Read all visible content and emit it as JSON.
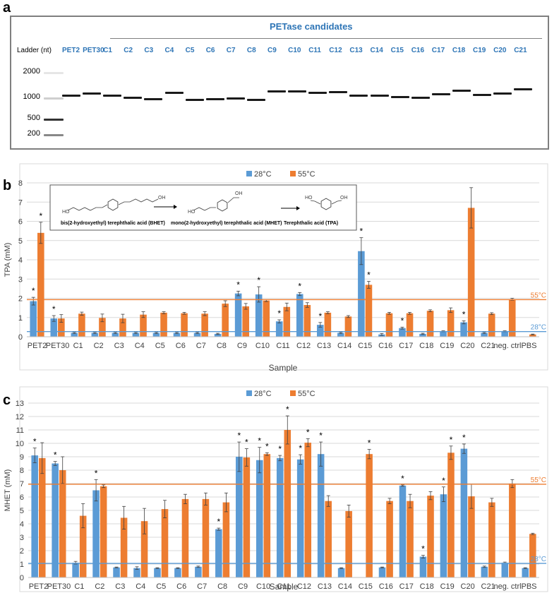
{
  "panel_a": {
    "letter": "a",
    "header": "PETase candidates",
    "ladder_title": "Ladder (nt)",
    "ladder_sizes": [
      "2000",
      "1000",
      "500",
      "200"
    ],
    "lanes": [
      "PET2",
      "PET30",
      "C1",
      "C2",
      "C3",
      "C4",
      "C5",
      "C6",
      "C7",
      "C8",
      "C9",
      "C10",
      "C11",
      "C12",
      "C13",
      "C14",
      "C15",
      "C16",
      "C17",
      "C18",
      "C19",
      "C20",
      "C21"
    ],
    "label_color": "#2e75b6"
  },
  "panel_b": {
    "letter": "b",
    "scheme": {
      "bhet": "bis(2-hydroxyethyl) terephthalic acid  (BHET)",
      "mhet": "mono(2-hydroxyethyl) terephthalic acid  (MHET)",
      "tpa": "Terephthalic acid (TPA)"
    },
    "ref_line_labels": {
      "high": "55°C",
      "low": "28°C"
    }
  },
  "panel_c": {
    "letter": "c",
    "ref_line_labels": {
      "high": "55°C",
      "low": "28°C"
    }
  },
  "colors": {
    "c28": "#5b9bd5",
    "c55": "#ed7d31",
    "axis": "#595959",
    "grid": "#d9d9d9"
  },
  "chart_data": [
    {
      "type": "bar",
      "title": "",
      "xlabel": "Sample",
      "ylabel": "TPA (mM)",
      "ylim": [
        0,
        8
      ],
      "yticks": [
        0,
        1,
        2,
        3,
        4,
        5,
        6,
        7,
        8
      ],
      "grid": true,
      "legend": "top-center",
      "categories": [
        "PET2",
        "PET30",
        "C1",
        "C2",
        "C3",
        "C4",
        "C5",
        "C6",
        "C7",
        "C8",
        "C9",
        "C10",
        "C11",
        "C12",
        "C13",
        "C14",
        "C15",
        "C16",
        "C17",
        "C18",
        "C19",
        "C20",
        "C21",
        "neg. ctrl.",
        "PBS"
      ],
      "series": [
        {
          "name": "28°C",
          "values": [
            1.85,
            0.95,
            0.2,
            0.2,
            0.2,
            0.2,
            0.2,
            0.2,
            0.2,
            0.15,
            2.25,
            2.2,
            0.8,
            2.22,
            0.62,
            0.2,
            4.45,
            0.12,
            0.45,
            0.15,
            0.28,
            0.75,
            0.2,
            0.28,
            null
          ],
          "errors": [
            0.2,
            0.15,
            0.03,
            0.03,
            0.03,
            0.03,
            0.03,
            0.03,
            0.03,
            0.03,
            0.12,
            0.4,
            0.08,
            0.08,
            0.12,
            0.03,
            0.7,
            0.05,
            0.05,
            0.03,
            0.03,
            0.08,
            0.03,
            0.03,
            null
          ],
          "significant": [
            true,
            true,
            false,
            false,
            false,
            false,
            false,
            false,
            false,
            false,
            true,
            true,
            true,
            true,
            true,
            false,
            true,
            false,
            true,
            false,
            false,
            true,
            false,
            false,
            false
          ]
        },
        {
          "name": "55°C",
          "values": [
            5.4,
            0.95,
            1.2,
            0.98,
            0.95,
            1.15,
            1.25,
            1.22,
            1.2,
            1.72,
            1.58,
            1.88,
            1.55,
            1.65,
            1.25,
            1.05,
            2.7,
            1.22,
            1.22,
            1.35,
            1.38,
            6.7,
            1.2,
            1.95,
            0.12
          ],
          "errors": [
            0.55,
            0.2,
            0.08,
            0.2,
            0.22,
            0.15,
            0.05,
            0.05,
            0.1,
            0.15,
            0.15,
            0.05,
            0.2,
            0.12,
            0.05,
            0.05,
            0.18,
            0.05,
            0.05,
            0.05,
            0.12,
            1.05,
            0.05,
            0.05,
            0.02
          ],
          "significant": [
            true,
            false,
            false,
            false,
            false,
            false,
            false,
            false,
            false,
            false,
            false,
            false,
            false,
            false,
            false,
            false,
            true,
            false,
            false,
            false,
            false,
            false,
            false,
            false,
            false
          ]
        }
      ],
      "reference_lines": {
        "55°C": 1.93,
        "28°C": 0.27
      }
    },
    {
      "type": "bar",
      "title": "",
      "xlabel": "Sample",
      "ylabel": "MHET (mM)",
      "ylim": [
        0,
        13
      ],
      "yticks": [
        0,
        1,
        2,
        3,
        4,
        5,
        6,
        7,
        8,
        9,
        10,
        11,
        12,
        13
      ],
      "grid": true,
      "legend": "top-center",
      "categories": [
        "PET2",
        "PET30",
        "C1",
        "C2",
        "C3",
        "C4",
        "C5",
        "C6",
        "C7",
        "C8",
        "C9",
        "C10",
        "C11",
        "C12",
        "C13",
        "C14",
        "C15",
        "C16",
        "C17",
        "C18",
        "C19",
        "C20",
        "C21",
        "neg. ctrl.",
        "PBS"
      ],
      "series": [
        {
          "name": "28°C",
          "values": [
            9.1,
            8.5,
            1.1,
            6.5,
            0.75,
            0.7,
            0.7,
            0.7,
            0.8,
            3.6,
            9.0,
            8.75,
            8.9,
            8.8,
            9.2,
            0.7,
            null,
            0.75,
            6.85,
            1.55,
            6.2,
            9.6,
            0.8,
            1.1,
            0.7
          ],
          "errors": [
            0.55,
            0.15,
            0.1,
            0.8,
            0.03,
            0.1,
            0.03,
            0.03,
            0.05,
            0.08,
            1.1,
            0.95,
            0.2,
            0.35,
            0.9,
            0.03,
            null,
            0.03,
            0.05,
            0.1,
            0.55,
            0.35,
            0.05,
            0.05,
            0.03
          ],
          "significant": [
            true,
            true,
            false,
            true,
            false,
            false,
            false,
            false,
            false,
            true,
            true,
            true,
            true,
            true,
            true,
            false,
            false,
            false,
            true,
            true,
            true,
            true,
            false,
            false,
            false
          ]
        },
        {
          "name": "55°C",
          "values": [
            8.9,
            8.0,
            4.6,
            6.8,
            4.45,
            4.2,
            5.1,
            5.85,
            5.85,
            5.6,
            8.95,
            9.2,
            11.0,
            10.05,
            5.7,
            4.95,
            9.2,
            5.7,
            5.7,
            6.1,
            9.3,
            6.05,
            5.6,
            7.0,
            3.25
          ],
          "errors": [
            1.15,
            1.0,
            0.9,
            0.1,
            0.85,
            0.95,
            0.65,
            0.35,
            0.45,
            0.7,
            0.65,
            0.1,
            1.05,
            0.3,
            0.4,
            0.45,
            0.35,
            0.2,
            0.5,
            0.3,
            0.5,
            0.9,
            0.3,
            0.3,
            0.05
          ],
          "significant": [
            false,
            false,
            false,
            false,
            false,
            false,
            false,
            false,
            false,
            false,
            true,
            true,
            true,
            true,
            false,
            false,
            true,
            false,
            false,
            false,
            true,
            false,
            false,
            false,
            false
          ]
        }
      ],
      "reference_lines": {
        "55°C": 6.95,
        "28°C": 1.05
      }
    }
  ]
}
